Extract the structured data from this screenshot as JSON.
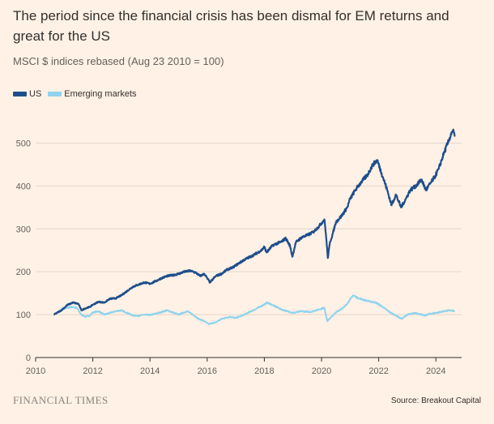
{
  "title": "The period since the financial crisis has been dismal for EM returns and great for the US",
  "subtitle": "MSCI $ indices rebased (Aug 23 2010 = 100)",
  "brand": "FINANCIAL TIMES",
  "source": "Source: Breakout Capital",
  "chart_data": {
    "type": "line",
    "title": "The period since the financial crisis has been dismal for EM returns and great for the US",
    "subtitle": "MSCI $ indices rebased (Aug 23 2010 = 100)",
    "xlim": [
      2010,
      2024.9
    ],
    "ylim": [
      0,
      550
    ],
    "x_ticks": [
      2010,
      2012,
      2014,
      2016,
      2018,
      2020,
      2022,
      2024
    ],
    "y_ticks": [
      0,
      100,
      200,
      300,
      400,
      500
    ],
    "grid": true,
    "legend_position": "top-left",
    "series": [
      {
        "name": "US",
        "color": "#1f4e8c",
        "x": [
          2010.64,
          2010.9,
          2011.1,
          2011.3,
          2011.5,
          2011.6,
          2011.75,
          2011.9,
          2012.0,
          2012.2,
          2012.4,
          2012.6,
          2012.8,
          2013.0,
          2013.2,
          2013.4,
          2013.6,
          2013.8,
          2014.0,
          2014.2,
          2014.4,
          2014.6,
          2014.8,
          2015.0,
          2015.2,
          2015.4,
          2015.6,
          2015.75,
          2015.9,
          2016.0,
          2016.1,
          2016.3,
          2016.5,
          2016.7,
          2016.9,
          2017.0,
          2017.3,
          2017.6,
          2017.9,
          2018.0,
          2018.08,
          2018.3,
          2018.6,
          2018.75,
          2018.9,
          2018.98,
          2019.1,
          2019.3,
          2019.5,
          2019.7,
          2019.9,
          2020.1,
          2020.15,
          2020.22,
          2020.3,
          2020.4,
          2020.5,
          2020.7,
          2020.9,
          2021.0,
          2021.2,
          2021.4,
          2021.6,
          2021.8,
          2021.95,
          2022.1,
          2022.3,
          2022.45,
          2022.6,
          2022.78,
          2022.95,
          2023.1,
          2023.3,
          2023.5,
          2023.65,
          2023.8,
          2023.95,
          2024.1,
          2024.3,
          2024.45,
          2024.55,
          2024.6,
          2024.66
        ],
        "values": [
          100,
          110,
          122,
          128,
          125,
          110,
          115,
          118,
          123,
          130,
          128,
          137,
          138,
          145,
          155,
          165,
          170,
          175,
          172,
          178,
          185,
          190,
          192,
          195,
          200,
          202,
          198,
          190,
          195,
          185,
          175,
          190,
          195,
          205,
          210,
          215,
          228,
          238,
          250,
          258,
          245,
          262,
          270,
          278,
          260,
          235,
          268,
          280,
          285,
          292,
          305,
          322,
          290,
          232,
          270,
          290,
          315,
          330,
          350,
          370,
          392,
          410,
          425,
          450,
          460,
          430,
          390,
          355,
          380,
          350,
          370,
          390,
          400,
          415,
          390,
          405,
          420,
          440,
          480,
          505,
          525,
          530,
          515
        ]
      },
      {
        "name": "Emerging markets",
        "color": "#8fd3ee",
        "x": [
          2010.64,
          2010.9,
          2011.1,
          2011.3,
          2011.45,
          2011.6,
          2011.75,
          2011.9,
          2012.0,
          2012.2,
          2012.4,
          2012.6,
          2012.8,
          2013.0,
          2013.2,
          2013.4,
          2013.6,
          2013.8,
          2014.0,
          2014.3,
          2014.6,
          2014.8,
          2015.0,
          2015.3,
          2015.5,
          2015.7,
          2015.9,
          2016.05,
          2016.3,
          2016.5,
          2016.8,
          2017.0,
          2017.3,
          2017.6,
          2017.9,
          2018.1,
          2018.3,
          2018.6,
          2018.8,
          2019.0,
          2019.3,
          2019.6,
          2019.9,
          2020.1,
          2020.2,
          2020.5,
          2020.8,
          2021.0,
          2021.1,
          2021.3,
          2021.6,
          2021.9,
          2022.1,
          2022.4,
          2022.6,
          2022.8,
          2023.0,
          2023.3,
          2023.6,
          2023.8,
          2024.0,
          2024.3,
          2024.5,
          2024.66
        ],
        "values": [
          100,
          112,
          116,
          118,
          115,
          100,
          95,
          98,
          105,
          108,
          100,
          104,
          108,
          110,
          104,
          98,
          97,
          100,
          99,
          104,
          110,
          105,
          100,
          108,
          100,
          90,
          85,
          78,
          82,
          90,
          95,
          92,
          100,
          110,
          120,
          128,
          122,
          112,
          108,
          104,
          108,
          106,
          112,
          116,
          85,
          105,
          118,
          135,
          145,
          138,
          132,
          128,
          120,
          105,
          98,
          90,
          100,
          104,
          98,
          102,
          104,
          108,
          110,
          108
        ]
      }
    ]
  }
}
